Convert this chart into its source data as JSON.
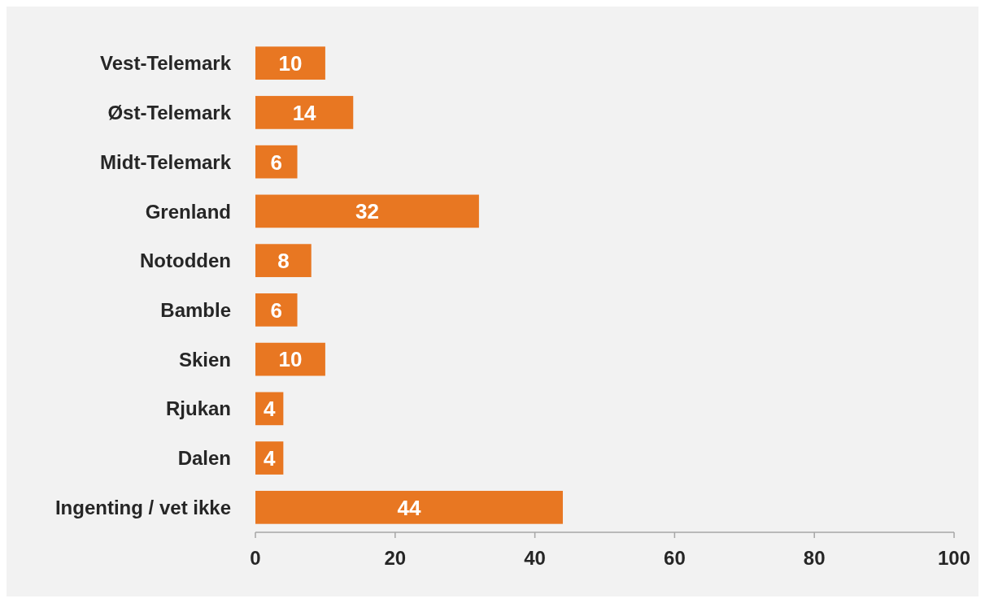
{
  "chart_data": {
    "type": "bar",
    "orientation": "horizontal",
    "categories": [
      "Vest-Telemark",
      "Øst-Telemark",
      "Midt-Telemark",
      "Grenland",
      "Notodden",
      "Bamble",
      "Skien",
      "Rjukan",
      "Dalen",
      "Ingenting / vet ikke"
    ],
    "values": [
      10,
      14,
      6,
      32,
      8,
      6,
      10,
      4,
      4,
      44
    ],
    "color": "#e87722",
    "data_labels": true,
    "xlim": [
      0,
      100
    ],
    "xticks": [
      0,
      20,
      40,
      60,
      80,
      100
    ],
    "grid": false
  }
}
